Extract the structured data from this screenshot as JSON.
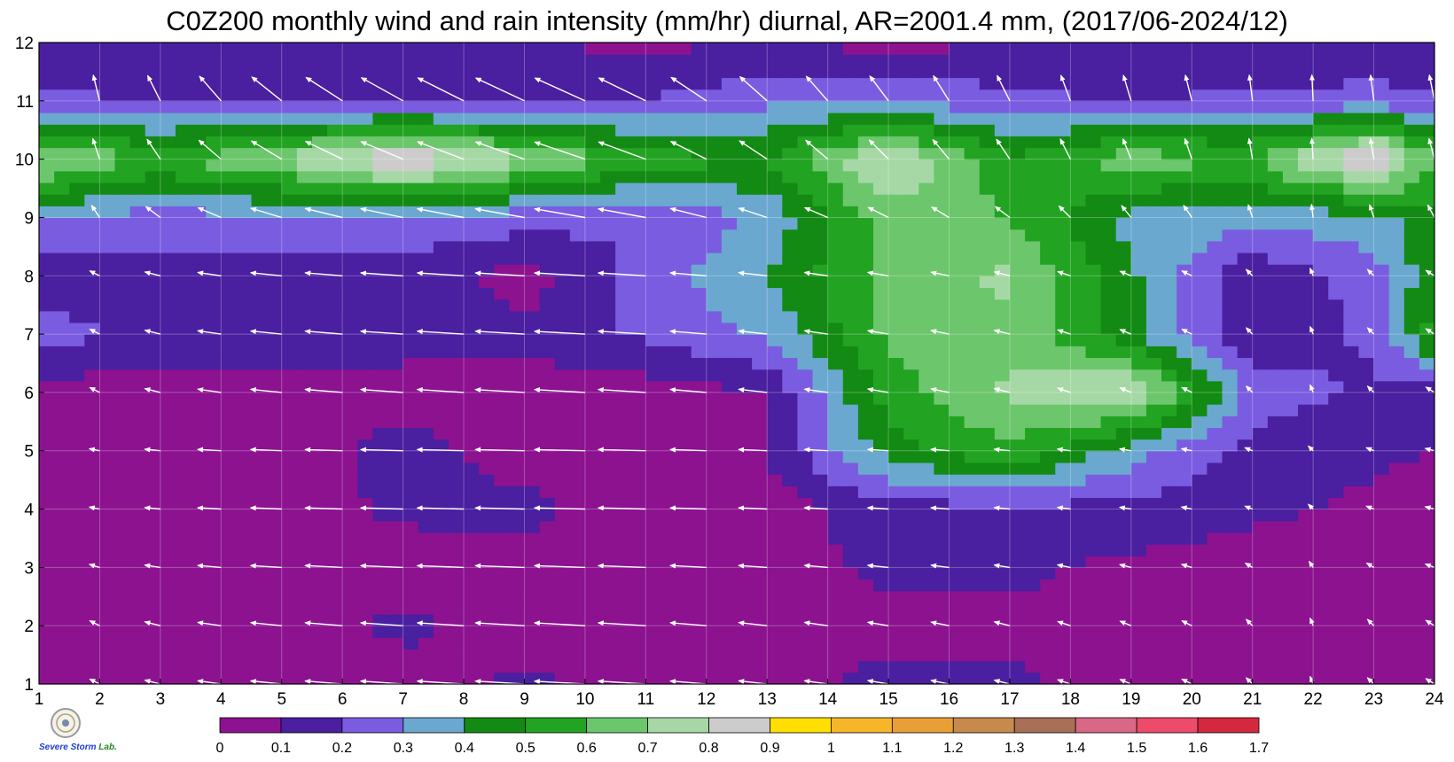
{
  "chart_data": {
    "type": "heatmap",
    "title": "C0Z200 monthly wind and rain intensity (mm/hr) diurnal, AR=2001.4 mm, (2017/06-2024/12)",
    "x_ticks": [
      "1",
      "2",
      "3",
      "4",
      "5",
      "6",
      "7",
      "8",
      "9",
      "10",
      "11",
      "12",
      "13",
      "14",
      "15",
      "16",
      "17",
      "18",
      "19",
      "20",
      "21",
      "22",
      "23",
      "24"
    ],
    "y_ticks": [
      "1",
      "2",
      "3",
      "4",
      "5",
      "6",
      "7",
      "8",
      "9",
      "10",
      "11",
      "12"
    ],
    "xlim": [
      1,
      24
    ],
    "ylim": [
      1,
      12
    ],
    "grid": true,
    "colorbar": {
      "orientation": "horizontal",
      "position": "bottom",
      "levels": [
        0,
        0.1,
        0.2,
        0.3,
        0.4,
        0.5,
        0.6,
        0.7,
        0.8,
        0.9,
        1,
        1.1,
        1.2,
        1.3,
        1.4,
        1.5,
        1.6,
        1.7
      ],
      "level_labels": [
        "0",
        "0.1",
        "0.2",
        "0.3",
        "0.4",
        "0.5",
        "0.6",
        "0.7",
        "0.8",
        "0.9",
        "1",
        "1.1",
        "1.2",
        "1.3",
        "1.4",
        "1.5",
        "1.6",
        "1.7"
      ],
      "colors": [
        "#8c1290",
        "#4a1fa0",
        "#7a5ce0",
        "#6aa8d0",
        "#138a13",
        "#22a322",
        "#6cc66c",
        "#a6d8a6",
        "#cccccc",
        "#ffde00",
        "#f7b62a",
        "#e8a036",
        "#c88a4c",
        "#a87056",
        "#d86886",
        "#ee4a6a",
        "#d4283e"
      ]
    },
    "rain_intensity_grid": {
      "months": [
        1,
        2,
        3,
        4,
        5,
        6,
        7,
        8,
        9,
        10,
        11,
        12
      ],
      "hours": [
        1,
        3,
        5,
        7,
        9,
        11,
        13,
        15,
        17,
        19,
        21,
        23,
        24
      ],
      "values": [
        [
          0.05,
          0.05,
          0.08,
          0.06,
          0.12,
          0.05,
          0.05,
          0.14,
          0.12,
          0.05,
          0.1,
          0.05,
          0.05
        ],
        [
          0.05,
          0.05,
          0.05,
          0.12,
          0.05,
          0.05,
          0.05,
          0.05,
          0.08,
          0.05,
          0.08,
          0.05,
          0.05
        ],
        [
          0.05,
          0.05,
          0.05,
          0.05,
          0.05,
          0.05,
          0.05,
          0.13,
          0.12,
          0.08,
          0.05,
          0.05,
          0.05
        ],
        [
          0.05,
          0.05,
          0.05,
          0.12,
          0.13,
          0.05,
          0.05,
          0.15,
          0.18,
          0.16,
          0.12,
          0.08,
          0.05
        ],
        [
          0.05,
          0.05,
          0.05,
          0.14,
          0.05,
          0.05,
          0.1,
          0.45,
          0.58,
          0.35,
          0.16,
          0.12,
          0.1
        ],
        [
          0.05,
          0.05,
          0.05,
          0.05,
          0.05,
          0.05,
          0.1,
          0.55,
          0.72,
          0.82,
          0.25,
          0.18,
          0.15
        ],
        [
          0.25,
          0.15,
          0.15,
          0.15,
          0.12,
          0.22,
          0.32,
          0.62,
          0.68,
          0.42,
          0.12,
          0.22,
          0.55
        ],
        [
          0.15,
          0.15,
          0.15,
          0.15,
          0.06,
          0.24,
          0.4,
          0.64,
          0.72,
          0.42,
          0.12,
          0.25,
          0.48
        ],
        [
          0.3,
          0.25,
          0.28,
          0.28,
          0.25,
          0.2,
          0.32,
          0.66,
          0.6,
          0.36,
          0.34,
          0.36,
          0.45
        ],
        [
          0.75,
          0.58,
          0.72,
          0.92,
          0.72,
          0.55,
          0.5,
          0.82,
          0.52,
          0.66,
          0.6,
          0.95,
          0.6
        ],
        [
          0.22,
          0.2,
          0.2,
          0.2,
          0.2,
          0.2,
          0.28,
          0.3,
          0.22,
          0.2,
          0.22,
          0.24,
          0.22
        ],
        [
          0.12,
          0.12,
          0.12,
          0.12,
          0.12,
          0.06,
          0.12,
          0.05,
          0.12,
          0.12,
          0.12,
          0.12,
          0.12
        ]
      ]
    },
    "wind_vectors": {
      "description_units": "relative",
      "u_by_hour": [
        0.05,
        0.1,
        0.2,
        0.35,
        0.5,
        0.62,
        0.72,
        0.8,
        0.85,
        0.88,
        0.82,
        0.6,
        0.45,
        0.35,
        0.3,
        0.25,
        0.2,
        0.15,
        0.12,
        0.1,
        0.05,
        0.02,
        0.05,
        0.08
      ],
      "v_by_month": [
        0.05,
        0.05,
        0.03,
        0.02,
        0.02,
        0.05,
        0.05,
        0.05,
        0.15,
        0.3,
        0.4,
        0.5
      ]
    }
  },
  "logo": {
    "line1": "Severe",
    "line2": "Storm",
    "line3": "Lab."
  }
}
